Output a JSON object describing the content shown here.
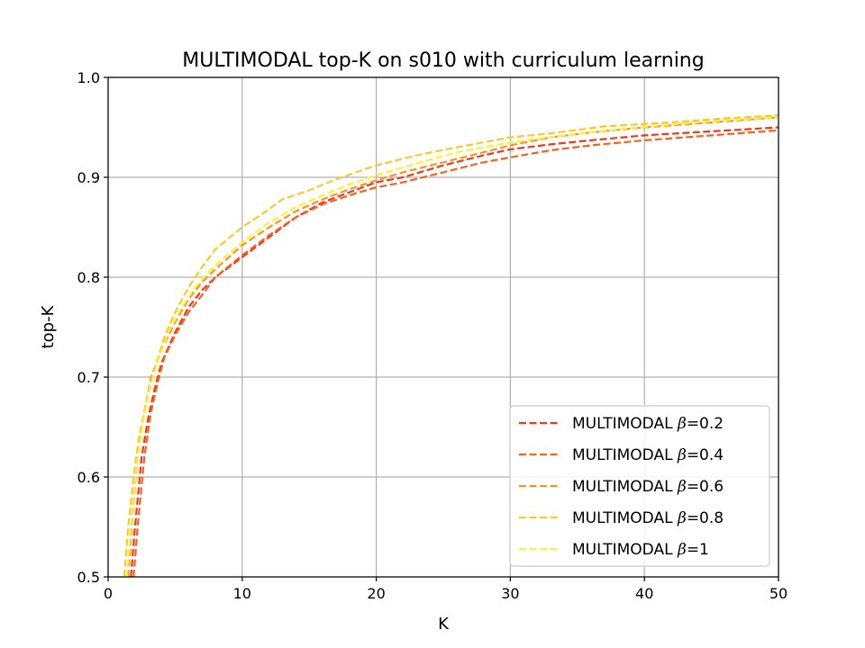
{
  "chart_data": {
    "type": "line",
    "title": "MULTIMODAL top-K on s010 with curriculum learning",
    "xlabel": "K",
    "ylabel": "top-K",
    "xlim": [
      0,
      50
    ],
    "ylim": [
      0.5,
      1.0
    ],
    "xticks": [
      "0",
      "10",
      "20",
      "30",
      "40",
      "50"
    ],
    "yticks": [
      "0.5",
      "0.6",
      "0.7",
      "0.8",
      "0.9",
      "1.0"
    ],
    "grid": true,
    "legend_position": "lower-right",
    "line_style": "dashed",
    "series": [
      {
        "name": "MULTIMODAL β=0.2",
        "prefix": "MULTIMODAL ",
        "beta": "0.2",
        "color": "#ee3a1c",
        "x": [
          1.7,
          2,
          2.5,
          3,
          3.5,
          4,
          5,
          6,
          7,
          8,
          10,
          12,
          14,
          16,
          18,
          20,
          22,
          25,
          28,
          30,
          33,
          36,
          40,
          45,
          50
        ],
        "y": [
          0.5,
          0.55,
          0.62,
          0.66,
          0.69,
          0.715,
          0.745,
          0.77,
          0.787,
          0.8,
          0.82,
          0.84,
          0.86,
          0.875,
          0.885,
          0.895,
          0.9,
          0.912,
          0.922,
          0.928,
          0.933,
          0.937,
          0.942,
          0.946,
          0.95
        ]
      },
      {
        "name": "MULTIMODAL β=0.4",
        "prefix": "MULTIMODAL ",
        "beta": "0.4",
        "color": "#f6621f",
        "x": [
          1.9,
          2.2,
          2.7,
          3.2,
          3.7,
          4.2,
          5,
          6,
          7,
          8,
          10,
          12,
          14,
          16,
          18,
          20,
          22,
          25,
          28,
          30,
          33,
          36,
          40,
          45,
          50
        ],
        "y": [
          0.5,
          0.55,
          0.62,
          0.665,
          0.695,
          0.72,
          0.742,
          0.765,
          0.782,
          0.8,
          0.822,
          0.842,
          0.86,
          0.873,
          0.882,
          0.89,
          0.895,
          0.905,
          0.915,
          0.92,
          0.927,
          0.932,
          0.937,
          0.942,
          0.947
        ]
      },
      {
        "name": "MULTIMODAL β=0.6",
        "prefix": "MULTIMODAL ",
        "beta": "0.6",
        "color": "#f99426",
        "x": [
          1.5,
          1.8,
          2.2,
          2.7,
          3.2,
          4,
          5,
          6,
          7,
          8,
          10,
          12,
          14,
          16,
          18,
          20,
          22,
          25,
          28,
          30,
          33,
          36,
          40,
          45,
          50
        ],
        "y": [
          0.5,
          0.56,
          0.62,
          0.665,
          0.7,
          0.728,
          0.755,
          0.778,
          0.795,
          0.808,
          0.832,
          0.85,
          0.866,
          0.878,
          0.888,
          0.897,
          0.905,
          0.915,
          0.925,
          0.932,
          0.94,
          0.945,
          0.95,
          0.955,
          0.96
        ]
      },
      {
        "name": "MULTIMODAL β=0.8",
        "prefix": "MULTIMODAL ",
        "beta": "0.8",
        "color": "#fbc830",
        "x": [
          1.2,
          1.5,
          1.9,
          2.3,
          2.8,
          3.5,
          4.2,
          5,
          6,
          7,
          8,
          10,
          12,
          13,
          15,
          17,
          20,
          23,
          26,
          30,
          33,
          37,
          42,
          46,
          50
        ],
        "y": [
          0.5,
          0.55,
          0.6,
          0.64,
          0.672,
          0.71,
          0.74,
          0.765,
          0.79,
          0.81,
          0.828,
          0.85,
          0.868,
          0.878,
          0.887,
          0.898,
          0.912,
          0.922,
          0.93,
          0.94,
          0.944,
          0.951,
          0.955,
          0.959,
          0.962
        ]
      },
      {
        "name": "MULTIMODAL β=1",
        "prefix": "MULTIMODAL ",
        "beta": "1",
        "color": "#fdf03a",
        "x": [
          1.4,
          1.7,
          2.1,
          2.6,
          3.1,
          3.8,
          4.5,
          5.5,
          6.5,
          7.5,
          8.5,
          10,
          12,
          14,
          16,
          18,
          20,
          23,
          26,
          30,
          34,
          38,
          42,
          46,
          50
        ],
        "y": [
          0.5,
          0.55,
          0.61,
          0.655,
          0.69,
          0.72,
          0.745,
          0.77,
          0.79,
          0.805,
          0.818,
          0.835,
          0.855,
          0.87,
          0.882,
          0.893,
          0.902,
          0.914,
          0.925,
          0.935,
          0.942,
          0.948,
          0.953,
          0.957,
          0.96
        ]
      }
    ]
  }
}
